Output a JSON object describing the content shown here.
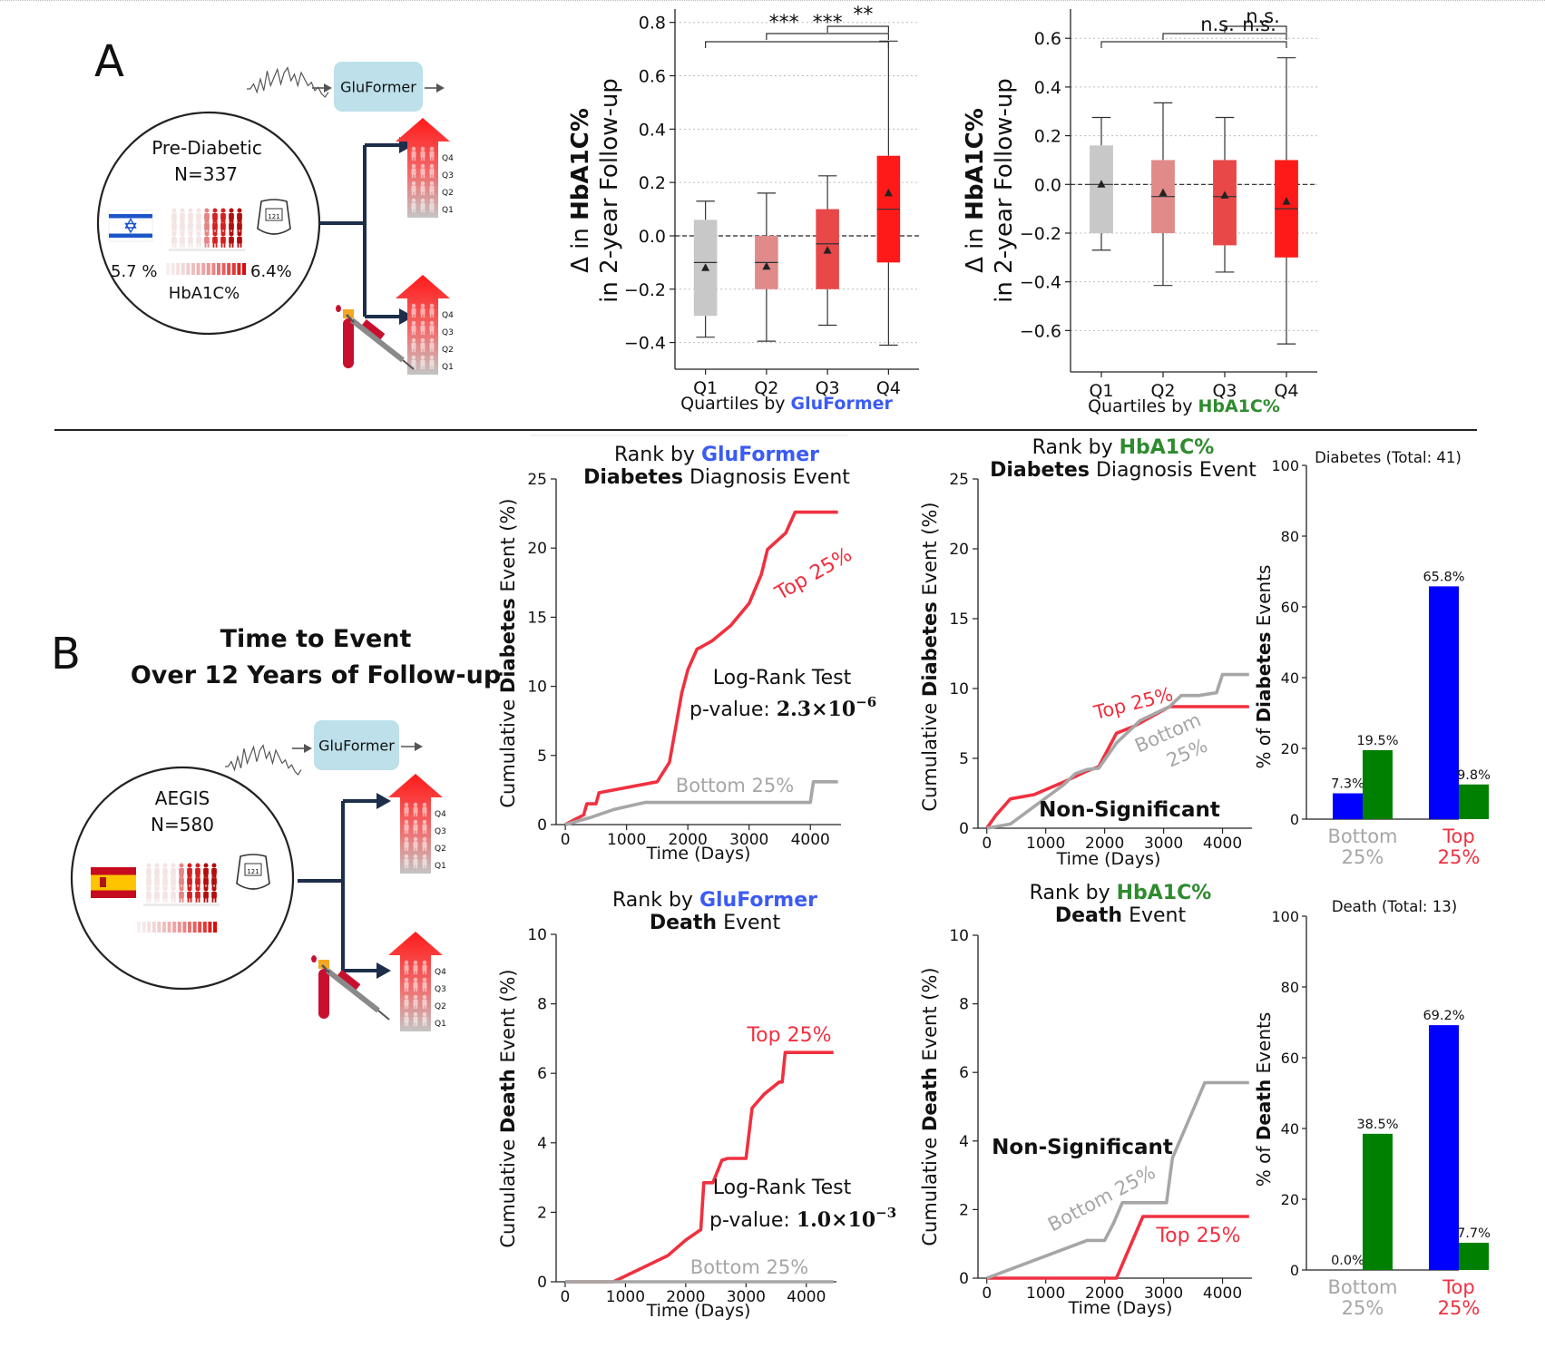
{
  "panelA": {
    "letter": "A",
    "cohort_name": "Pre-Diabetic",
    "cohort_n": "N=337",
    "hba1c_low": "5.7 %",
    "hba1c_high": "6.4%",
    "hba1c_label": "HbA1C%",
    "model_label": "GluFormer",
    "meter_text": "121",
    "quartile_labels": [
      "Q4",
      "Q3",
      "Q2",
      "Q1"
    ]
  },
  "panelB": {
    "letter": "B",
    "title_line1": "Time to Event",
    "title_line2": "Over 12 Years of Follow-up",
    "cohort_name": "AEGIS",
    "cohort_n": "N=580",
    "model_label": "GluFormer",
    "meter_text": "121",
    "quartile_labels": [
      "Q4",
      "Q3",
      "Q2",
      "Q1"
    ]
  },
  "colors": {
    "gluformer_blue": "#3b5bf5",
    "hba1c_green": "#2e8b2e",
    "top_red": "#f03040",
    "bottom_gray": "#a6a6a6",
    "bar_blue": "#0000ff",
    "bar_green": "#008000",
    "box_q1": "#c8c8c8",
    "box_q2": "#e08a8a",
    "box_q3": "#e84848",
    "box_q4": "#ff1a1a",
    "dark_navy": "#1c2e4a",
    "bubble": "#bde0ea"
  },
  "chart_data": [
    {
      "id": "box_gluformer",
      "type": "box",
      "ylabel_pre": "Δ in ",
      "ylabel_bold": "HbA1C%",
      "ylabel_line2": "in 2-year Follow-up",
      "xlabel_pre": "Quartiles by ",
      "xlabel_colored": "GluFormer",
      "categories": [
        "Q1",
        "Q2",
        "Q3",
        "Q4"
      ],
      "ylim": [
        -0.5,
        0.85
      ],
      "yticks": [
        -0.4,
        -0.2,
        0.0,
        0.2,
        0.4,
        0.6,
        0.8
      ],
      "ytick_labels": [
        "−0.4",
        "−0.2",
        "0.0",
        "0.2",
        "0.4",
        "0.6",
        "0.8"
      ],
      "grid": "horizontal dotted",
      "boxes": [
        {
          "q1": -0.3,
          "median": -0.1,
          "q3": 0.06,
          "mean": -0.12,
          "wlo": -0.38,
          "whi": 0.13
        },
        {
          "q1": -0.2,
          "median": -0.1,
          "q3": 0.0,
          "mean": -0.115,
          "wlo": -0.395,
          "whi": 0.16
        },
        {
          "q1": -0.2,
          "median": -0.03,
          "q3": 0.1,
          "mean": -0.055,
          "wlo": -0.335,
          "whi": 0.225
        },
        {
          "q1": -0.1,
          "median": 0.1,
          "q3": 0.3,
          "mean": 0.16,
          "wlo": -0.41,
          "whi": 0.73
        }
      ],
      "significance": [
        "***",
        "***",
        "**"
      ]
    },
    {
      "id": "box_hba1c",
      "type": "box",
      "ylabel_pre": "Δ in ",
      "ylabel_bold": "HbA1C%",
      "ylabel_line2": "in 2-year Follow-up",
      "xlabel_pre": "Quartiles by ",
      "xlabel_colored": "HbA1C%",
      "categories": [
        "Q1",
        "Q2",
        "Q3",
        "Q4"
      ],
      "ylim": [
        -0.77,
        0.72
      ],
      "yticks": [
        -0.6,
        -0.4,
        -0.2,
        0.0,
        0.2,
        0.4,
        0.6
      ],
      "ytick_labels": [
        "−0.6",
        "−0.4",
        "−0.2",
        "0.0",
        "0.2",
        "0.4",
        "0.6"
      ],
      "grid": "horizontal dotted",
      "boxes": [
        {
          "q1": -0.2,
          "median": 0.0,
          "q3": 0.16,
          "mean": 0.0,
          "wlo": -0.27,
          "whi": 0.275
        },
        {
          "q1": -0.2,
          "median": -0.05,
          "q3": 0.1,
          "mean": -0.035,
          "wlo": -0.415,
          "whi": 0.335
        },
        {
          "q1": -0.25,
          "median": -0.05,
          "q3": 0.1,
          "mean": -0.045,
          "wlo": -0.36,
          "whi": 0.275
        },
        {
          "q1": -0.3,
          "median": -0.1,
          "q3": 0.1,
          "mean": -0.07,
          "wlo": -0.655,
          "whi": 0.52
        }
      ],
      "significance": [
        "n.s.",
        "n.s.",
        "n.s."
      ]
    },
    {
      "id": "km_glu_diabetes",
      "type": "line",
      "title_pre": "Rank by ",
      "title_colored": "GluFormer",
      "title_bold": "Diabetes",
      "title_rest": " Diagnosis Event",
      "ylabel_pre": "Cumulative ",
      "ylabel_bold": "Diabetes",
      "ylabel_post": " Event (%)",
      "xlabel": "Time (Days)",
      "xlim": [
        -150,
        4500
      ],
      "ylim": [
        0,
        25
      ],
      "xticks": [
        0,
        1000,
        2000,
        3000,
        4000
      ],
      "yticks": [
        0,
        5,
        10,
        15,
        20,
        25
      ],
      "series": [
        {
          "name": "Top 25%",
          "color": "#f03040",
          "x": [
            0,
            300,
            350,
            500,
            550,
            1500,
            1700,
            1800,
            1900,
            2000,
            2150,
            2200,
            2400,
            2700,
            3000,
            3200,
            3300,
            3600,
            3750,
            4000,
            4450
          ],
          "y": [
            0,
            0.7,
            1.5,
            1.5,
            2.3,
            3.1,
            4.5,
            7.0,
            9.5,
            11.2,
            12.7,
            12.8,
            13.3,
            14.4,
            16.0,
            18.1,
            19.9,
            21.1,
            22.6,
            22.6,
            22.6
          ]
        },
        {
          "name": "Bottom 25%",
          "color": "#a6a6a6",
          "x": [
            0,
            400,
            800,
            1300,
            4000,
            4050,
            4450
          ],
          "y": [
            0,
            0.5,
            1.1,
            1.6,
            1.6,
            3.1,
            3.1
          ]
        }
      ],
      "labels": {
        "top": "Top 25%",
        "bottom": "Bottom 25%"
      },
      "annotation_line1": "Log-Rank Test",
      "annotation_line2_pre": "p-value: ",
      "annotation_value": "2.3×10",
      "annotation_exp": "−6"
    },
    {
      "id": "km_hba1c_diabetes",
      "type": "line",
      "title_pre": "Rank by ",
      "title_colored": "HbA1C%",
      "title_bold": "Diabetes",
      "title_rest": " Diagnosis Event",
      "ylabel_pre": "Cumulative ",
      "ylabel_bold": "Diabetes",
      "ylabel_post": " Event (%)",
      "xlabel": "Time (Days)",
      "xlim": [
        -150,
        4500
      ],
      "ylim": [
        0,
        25
      ],
      "xticks": [
        0,
        1000,
        2000,
        3000,
        4000
      ],
      "yticks": [
        0,
        5,
        10,
        15,
        20,
        25
      ],
      "series": [
        {
          "name": "Top 25%",
          "color": "#f03040",
          "x": [
            0,
            150,
            400,
            800,
            1300,
            1700,
            1900,
            2200,
            2500,
            2800,
            3100,
            3500,
            4450
          ],
          "y": [
            0,
            0.9,
            2.1,
            2.4,
            3.3,
            4.1,
            4.4,
            6.8,
            7.3,
            8.0,
            8.7,
            8.7,
            8.7
          ]
        },
        {
          "name": "Bottom 25%",
          "color": "#a6a6a6",
          "x": [
            0,
            400,
            1300,
            1500,
            1700,
            1900,
            2200,
            2600,
            3100,
            3300,
            3600,
            3900,
            4000,
            4450
          ],
          "y": [
            0,
            0.3,
            3.1,
            3.9,
            4.2,
            4.3,
            6.1,
            7.7,
            8.7,
            9.5,
            9.5,
            9.7,
            11.0,
            11.0
          ]
        }
      ],
      "labels": {
        "top": "Top 25%",
        "bottom": "Bottom 25%"
      },
      "annotation_line1": "Non-Significant"
    },
    {
      "id": "km_glu_death",
      "type": "line",
      "title_pre": "Rank by ",
      "title_colored": "GluFormer",
      "title_bold": "Death",
      "title_rest": " Event",
      "ylabel_pre": "Cumulative ",
      "ylabel_bold": "Death",
      "ylabel_post": " Event (%)",
      "xlabel": "Time (Days)",
      "xlim": [
        -150,
        4500
      ],
      "ylim": [
        0,
        10
      ],
      "xticks": [
        0,
        1000,
        2000,
        3000,
        4000
      ],
      "yticks": [
        0,
        2,
        4,
        6,
        8,
        10
      ],
      "series": [
        {
          "name": "Top 25%",
          "color": "#f03040",
          "x": [
            0,
            800,
            1700,
            2000,
            2250,
            2300,
            2450,
            2600,
            2700,
            3000,
            3100,
            3300,
            3550,
            3600,
            3650,
            4450
          ],
          "y": [
            0,
            0,
            0.75,
            1.2,
            1.5,
            2.85,
            2.85,
            3.5,
            3.55,
            3.55,
            5.0,
            5.4,
            5.75,
            5.75,
            6.6,
            6.6
          ]
        },
        {
          "name": "Bottom 25%",
          "color": "#a6a6a6",
          "x": [
            0,
            4450
          ],
          "y": [
            0,
            0
          ]
        }
      ],
      "labels": {
        "top": "Top 25%",
        "bottom": "Bottom 25%"
      },
      "annotation_line1": "Log-Rank Test",
      "annotation_line2_pre": "p-value: ",
      "annotation_value": "1.0×10",
      "annotation_exp": "−3"
    },
    {
      "id": "km_hba1c_death",
      "type": "line",
      "title_pre": "Rank by ",
      "title_colored": "HbA1C%",
      "title_bold": "Death",
      "title_rest": " Event",
      "ylabel_pre": "Cumulative ",
      "ylabel_bold": "Death",
      "ylabel_post": " Event (%)",
      "xlabel": "Time (Days)",
      "xlim": [
        -150,
        4500
      ],
      "ylim": [
        0,
        10
      ],
      "xticks": [
        0,
        1000,
        2000,
        3000,
        4000
      ],
      "yticks": [
        0,
        2,
        4,
        6,
        8,
        10
      ],
      "series": [
        {
          "name": "Top 25%",
          "color": "#f03040",
          "x": [
            0,
            2200,
            2650,
            4450
          ],
          "y": [
            0,
            0,
            1.8,
            1.8
          ]
        },
        {
          "name": "Bottom 25%",
          "color": "#a6a6a6",
          "x": [
            0,
            1700,
            2000,
            2150,
            2300,
            3050,
            3150,
            3550,
            3700,
            4450
          ],
          "y": [
            0,
            1.1,
            1.1,
            1.6,
            2.2,
            2.2,
            3.5,
            5.1,
            5.7,
            5.7
          ]
        }
      ],
      "labels": {
        "top": "Top 25%",
        "bottom": "Bottom 25%"
      },
      "annotation_line1": "Non-Significant"
    },
    {
      "id": "bar_diabetes",
      "type": "bar",
      "title": "Diabetes (Total: 41)",
      "ylabel_pre": "% of ",
      "ylabel_bold": "Diabetes",
      "ylabel_post": " Events",
      "ylim": [
        0,
        100
      ],
      "yticks": [
        0,
        20,
        40,
        60,
        80,
        100
      ],
      "categories": [
        "Bottom\n25%",
        "Top\n25%"
      ],
      "category_lines": [
        [
          "Bottom",
          "25%"
        ],
        [
          "Top",
          "25%"
        ]
      ],
      "category_colors": [
        "#a6a6a6",
        "#f03040"
      ],
      "series": [
        {
          "color": "#0000ff",
          "values": [
            7.3,
            65.8
          ],
          "labels": [
            "7.3%",
            "65.8%"
          ]
        },
        {
          "color": "#008000",
          "values": [
            19.5,
            9.8
          ],
          "labels": [
            "19.5%",
            "9.8%"
          ]
        }
      ]
    },
    {
      "id": "bar_death",
      "type": "bar",
      "title": "Death (Total: 13)",
      "ylabel_pre": "% of ",
      "ylabel_bold": "Death",
      "ylabel_post": " Events",
      "ylim": [
        0,
        100
      ],
      "yticks": [
        0,
        20,
        40,
        60,
        80,
        100
      ],
      "categories": [
        "Bottom\n25%",
        "Top\n25%"
      ],
      "category_lines": [
        [
          "Bottom",
          "25%"
        ],
        [
          "Top",
          "25%"
        ]
      ],
      "category_colors": [
        "#a6a6a6",
        "#f03040"
      ],
      "series": [
        {
          "color": "#0000ff",
          "values": [
            0.0,
            69.2
          ],
          "labels": [
            "0.0%",
            "69.2%"
          ]
        },
        {
          "color": "#008000",
          "values": [
            38.5,
            7.7
          ],
          "labels": [
            "38.5%",
            "7.7%"
          ]
        }
      ]
    }
  ]
}
